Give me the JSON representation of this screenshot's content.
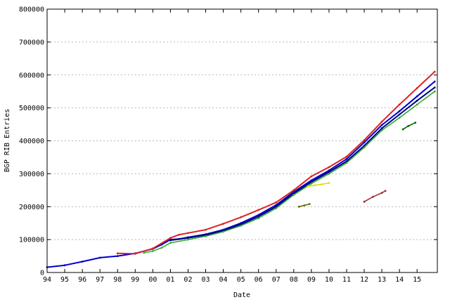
{
  "chart_data": {
    "type": "scatter",
    "title": "",
    "xlabel": "Date",
    "ylabel": "BGP RIB Entries",
    "xlim": [
      1994.0,
      2016.15
    ],
    "ylim": [
      0,
      800000
    ],
    "grid": true,
    "x_tick_values": [
      1994,
      1995,
      1996,
      1997,
      1998,
      1999,
      2000,
      2001,
      2002,
      2003,
      2004,
      2005,
      2006,
      2007,
      2008,
      2009,
      2010,
      2011,
      2012,
      2013,
      2014,
      2015
    ],
    "x_tick_labels": [
      "94",
      "95",
      "96",
      "97",
      "98",
      "99",
      "00",
      "01",
      "02",
      "03",
      "04",
      "05",
      "06",
      "07",
      "08",
      "09",
      "10",
      "11",
      "12",
      "13",
      "14",
      "15"
    ],
    "y_tick_values": [
      0,
      100000,
      200000,
      300000,
      400000,
      500000,
      600000,
      700000,
      800000
    ],
    "y_tick_labels": [
      "0",
      "100000",
      "200000",
      "300000",
      "400000",
      "500000",
      "600000",
      "700000",
      "800000"
    ],
    "series": [
      {
        "color": "#0000cc",
        "x": [
          1994.0,
          1995.0,
          1996.0,
          1997.0,
          1998.0,
          1999.0,
          2000.0,
          2000.5,
          2001.0,
          2001.5,
          2002.0,
          2003.0,
          2004.0,
          2005.0,
          2006.0,
          2007.0,
          2008.0,
          2009.0,
          2010.0,
          2011.0,
          2012.0,
          2013.0,
          2014.0,
          2015.0,
          2016.0
        ],
        "y": [
          16000,
          22000,
          33000,
          45000,
          50000,
          58000,
          72000,
          85000,
          100000,
          102000,
          107000,
          116000,
          130000,
          150000,
          175000,
          205000,
          245000,
          280000,
          310000,
          345000,
          395000,
          448000,
          490000,
          535000,
          580000
        ]
      },
      {
        "color": "#000080",
        "x": [
          2001.0,
          2002.0,
          2003.0,
          2004.0,
          2005.0,
          2006.0,
          2007.0,
          2008.0,
          2009.0,
          2010.0,
          2011.0,
          2012.0,
          2013.0,
          2014.0,
          2015.0,
          2016.0
        ],
        "y": [
          98000,
          105000,
          114000,
          127000,
          146000,
          170000,
          200000,
          240000,
          275000,
          305000,
          338000,
          385000,
          438000,
          480000,
          522000,
          562000
        ]
      },
      {
        "color": "#dd2222",
        "x": [
          1998.0,
          1999.0,
          2000.0,
          2001.0,
          2001.5,
          2002.0,
          2003.0,
          2004.0,
          2005.0,
          2006.0,
          2007.0,
          2008.0,
          2009.0,
          2010.0,
          2011.0,
          2012.0,
          2013.0,
          2014.0,
          2015.0,
          2016.0
        ],
        "y": [
          58000,
          57000,
          73000,
          105000,
          115000,
          120000,
          130000,
          148000,
          168000,
          190000,
          213000,
          250000,
          292000,
          320000,
          352000,
          402000,
          458000,
          510000,
          560000,
          610000
        ]
      },
      {
        "color": "#33aa33",
        "x": [
          1999.5,
          2000.0,
          2000.5,
          2001.0,
          2002.0,
          2003.0,
          2004.0,
          2005.0,
          2006.0,
          2007.0,
          2008.0,
          2009.0,
          2010.0,
          2011.0,
          2012.0,
          2013.0,
          2014.0,
          2015.0,
          2016.0
        ],
        "y": [
          60000,
          65000,
          75000,
          90000,
          100000,
          110000,
          124000,
          142000,
          165000,
          195000,
          236000,
          270000,
          300000,
          333000,
          380000,
          432000,
          470000,
          510000,
          550000
        ]
      },
      {
        "color": "#dddd00",
        "x": [
          2008.8,
          2009.2,
          2009.6,
          2010.0
        ],
        "y": [
          262000,
          265000,
          268000,
          272000
        ]
      },
      {
        "color": "#993333",
        "x": [
          2012.0,
          2012.5,
          2013.0,
          2013.2
        ],
        "y": [
          215000,
          230000,
          242000,
          248000
        ]
      },
      {
        "color": "#006600",
        "x": [
          2014.2,
          2014.5,
          2014.9
        ],
        "y": [
          435000,
          445000,
          455000
        ]
      },
      {
        "color": "#666600",
        "x": [
          2008.3,
          2008.6,
          2008.9
        ],
        "y": [
          200000,
          204000,
          208000
        ]
      }
    ]
  }
}
